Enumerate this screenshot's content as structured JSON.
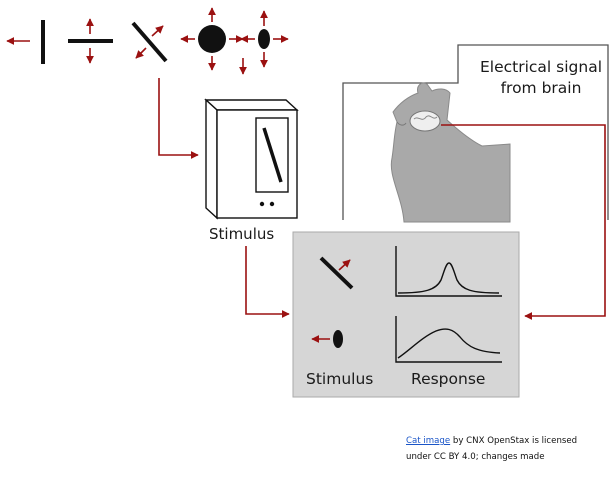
{
  "labels": {
    "stimulus_top": "Stimulus",
    "electrical_signal": "Electrical signal from brain",
    "panel_stimulus": "Stimulus",
    "panel_response": "Response"
  },
  "credit": {
    "link_text": "Cat image",
    "line1_rest": " by CNX OpenStax is licensed",
    "line2": "under CC BY 4.0; changes made"
  },
  "colors": {
    "arrow": "#9b1111",
    "line": "#111111",
    "panel_bg": "#d6d6d6",
    "cat": "#a9a9a9",
    "link": "#1a55c8"
  },
  "icons": {
    "stimulus_monitor": "monitor-icon",
    "cat": "cat-icon",
    "brain": "brain-icon"
  }
}
